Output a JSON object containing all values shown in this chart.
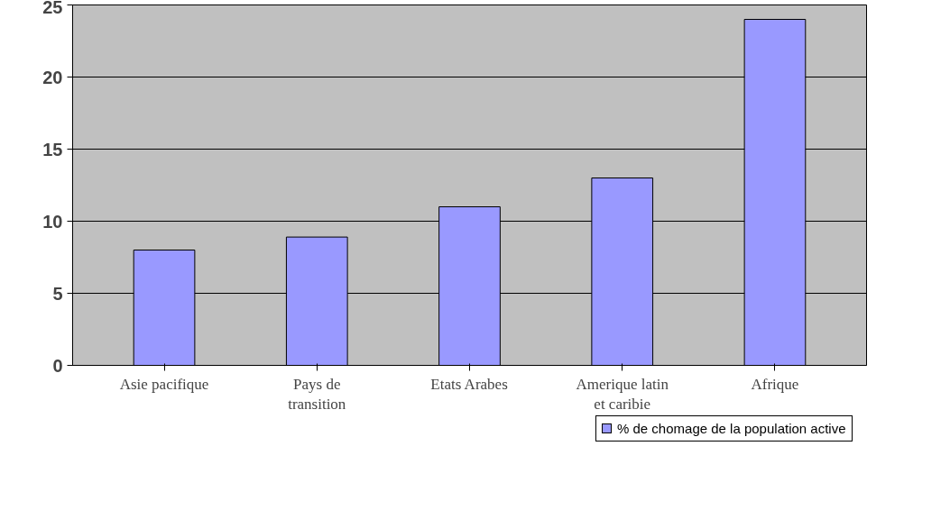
{
  "chart_data": {
    "type": "bar",
    "categories": [
      "Asie pacifique",
      "Pays de transition",
      "Etats Arabes",
      "Amerique latin et caribie",
      "Afrique"
    ],
    "series": [
      {
        "name": "% de chomage de la population active",
        "color": "#9999ff",
        "values": [
          8.0,
          8.9,
          11.0,
          13.0,
          24.0
        ]
      }
    ],
    "ylim": [
      0,
      25
    ],
    "yticks": [
      0,
      5,
      10,
      15,
      20,
      25
    ],
    "grid": "y",
    "legend": "bottom right"
  }
}
